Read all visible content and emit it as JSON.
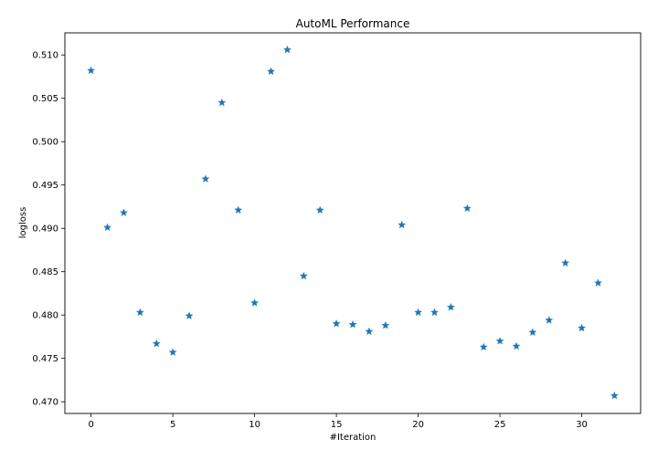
{
  "chart_data": {
    "type": "scatter",
    "title": "AutoML Performance",
    "xlabel": "#Iteration",
    "ylabel": "logloss",
    "xlim": [
      -1.6,
      33.6
    ],
    "ylim": [
      0.46865,
      0.51255
    ],
    "xticks": [
      0,
      5,
      10,
      15,
      20,
      25,
      30
    ],
    "yticks": [
      0.47,
      0.475,
      0.48,
      0.485,
      0.49,
      0.495,
      0.5,
      0.505,
      0.51
    ],
    "ytick_labels": [
      "0.470",
      "0.475",
      "0.480",
      "0.485",
      "0.490",
      "0.495",
      "0.500",
      "0.505",
      "0.510"
    ],
    "grid": false,
    "marker": "star",
    "color": "#1f77b4",
    "x": [
      0,
      1,
      2,
      3,
      4,
      5,
      6,
      7,
      8,
      9,
      10,
      11,
      12,
      13,
      14,
      15,
      16,
      17,
      18,
      19,
      20,
      21,
      22,
      23,
      24,
      25,
      26,
      27,
      28,
      29,
      30,
      31,
      32
    ],
    "y": [
      0.5082,
      0.4901,
      0.4918,
      0.4803,
      0.4767,
      0.4757,
      0.4799,
      0.4957,
      0.5045,
      0.4921,
      0.4814,
      0.5081,
      0.5106,
      0.4845,
      0.4921,
      0.479,
      0.4789,
      0.4781,
      0.4788,
      0.4904,
      0.4803,
      0.4803,
      0.4809,
      0.4923,
      0.4763,
      0.477,
      0.4764,
      0.478,
      0.4794,
      0.486,
      0.4785,
      0.4837,
      0.4707
    ]
  }
}
